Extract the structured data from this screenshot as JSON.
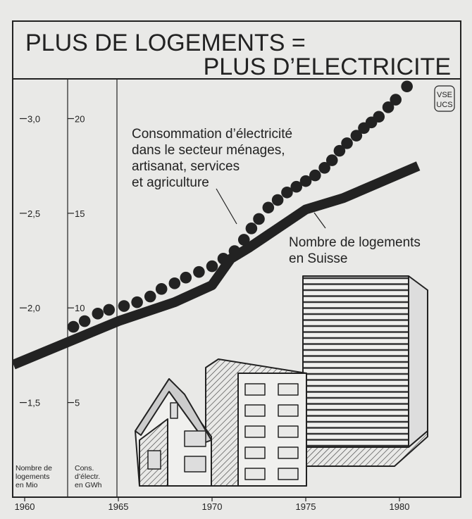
{
  "chart_data": {
    "type": "line",
    "title": [
      "PLUS DE LOGEMENTS =",
      "PLUS D’ELECTRICITE"
    ],
    "logo": [
      "VSE",
      "UCS"
    ],
    "ylabel": [
      "Nombre de",
      "logements",
      "en Mio"
    ],
    "y2label": [
      "Cons.",
      "d’électr.",
      "en GWh"
    ],
    "annotations": [
      [
        "Consommation d’électricité",
        "dans le secteur ménages,",
        "artisanat, services",
        "et agriculture"
      ],
      [
        "Nombre de logements",
        "en Suisse"
      ]
    ],
    "xlim": [
      1959.36,
      1983.27
    ],
    "xticks": [
      1960,
      1965,
      1970,
      1975,
      1980
    ],
    "ylim": [
      1.0,
      3.21
    ],
    "yticks": [
      {
        "value": 1.5,
        "label": "1,5"
      },
      {
        "value": 2.0,
        "label": "2,0"
      },
      {
        "value": 2.5,
        "label": "2,5"
      },
      {
        "value": 3.0,
        "label": "3,0"
      }
    ],
    "y2lim": [
      0,
      22.1
    ],
    "y2ticks": [
      5,
      10,
      15,
      20
    ],
    "series": [
      {
        "color": "#222222",
        "style": "line",
        "x": [
          1959.4,
          1965,
          1968,
          1970,
          1971,
          1972,
          1975,
          1977,
          1981
        ],
        "values": [
          1.7,
          1.93,
          2.03,
          2.12,
          2.26,
          2.32,
          2.52,
          2.58,
          2.75
        ]
      },
      {
        "color": "#222222",
        "style": "dots",
        "axis": "y2",
        "x": [
          1962.6,
          1963.2,
          1963.9,
          1964.5,
          1965.3,
          1966.0,
          1966.7,
          1967.3,
          1968.0,
          1968.6,
          1969.3,
          1970.0,
          1970.6,
          1971.2,
          1971.7,
          1972.1,
          1972.5,
          1973.0,
          1973.5,
          1974.0,
          1974.5,
          1975.0,
          1975.5,
          1976.0,
          1976.4,
          1976.8,
          1977.2,
          1977.7,
          1978.1,
          1978.5,
          1978.9,
          1979.4,
          1979.8,
          1980.4
        ],
        "values": [
          9.0,
          9.3,
          9.7,
          9.9,
          10.1,
          10.3,
          10.6,
          11.0,
          11.3,
          11.6,
          11.9,
          12.2,
          12.6,
          13.0,
          13.6,
          14.2,
          14.7,
          15.3,
          15.7,
          16.1,
          16.4,
          16.7,
          17.0,
          17.4,
          17.8,
          18.3,
          18.7,
          19.1,
          19.5,
          19.8,
          20.1,
          20.6,
          21.0,
          21.7
        ]
      }
    ]
  }
}
